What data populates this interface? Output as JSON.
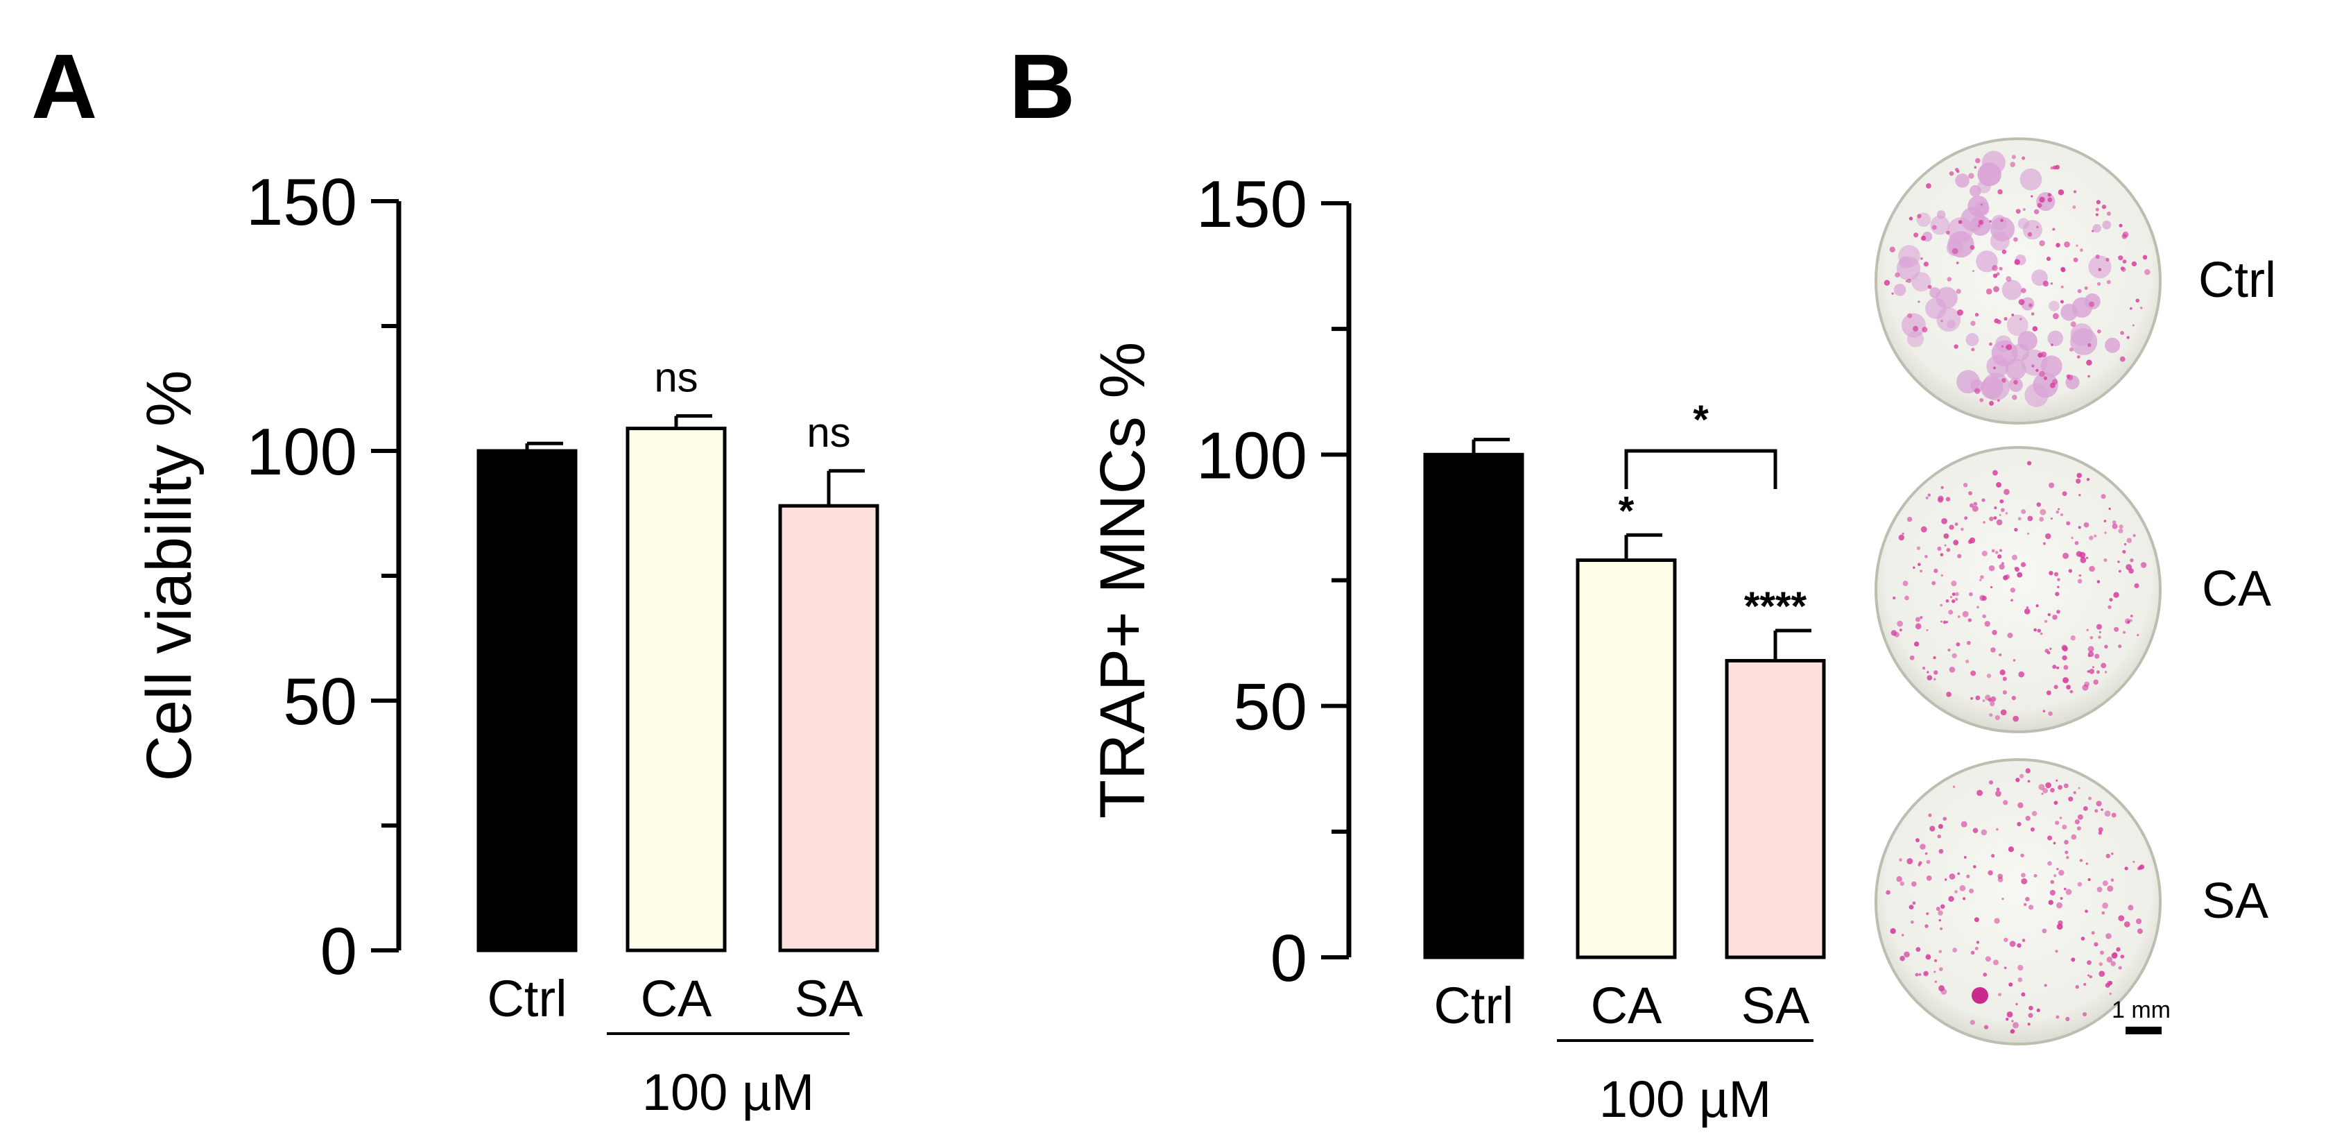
{
  "chart_data": [
    {
      "panel": "A",
      "type": "bar",
      "ylabel": "Cell viability %",
      "ylim": [
        0,
        150
      ],
      "yticks": [
        "0",
        "50",
        "100",
        "150"
      ],
      "categories": [
        "Ctrl",
        "CA",
        "SA"
      ],
      "values": [
        100,
        104.5,
        89
      ],
      "errors": [
        1.5,
        2.5,
        7
      ],
      "bar_colors": [
        "#000000",
        "#fefde8",
        "#fde0dd"
      ],
      "annotations": [
        "",
        "ns",
        "ns"
      ],
      "group_label": "100 µM"
    },
    {
      "panel": "B",
      "type": "bar",
      "ylabel": "TRAP+ MNCs %",
      "ylim": [
        0,
        150
      ],
      "yticks": [
        "0",
        "50",
        "100",
        "150"
      ],
      "categories": [
        "Ctrl",
        "CA",
        "SA"
      ],
      "values": [
        100,
        79,
        59
      ],
      "errors": [
        3,
        5,
        6
      ],
      "bar_colors": [
        "#000000",
        "#fefde8",
        "#fde0dd"
      ],
      "annotations": [
        "",
        "*",
        "****"
      ],
      "bracket_label": "*",
      "group_label": "100 µM"
    }
  ],
  "images": {
    "dish_labels": [
      "Ctrl",
      "CA",
      "SA"
    ],
    "dish_colors": [
      "#d9a3d6",
      "#e8bfe3",
      "#ecc7e6"
    ],
    "scale_bar_label": "1 mm"
  }
}
